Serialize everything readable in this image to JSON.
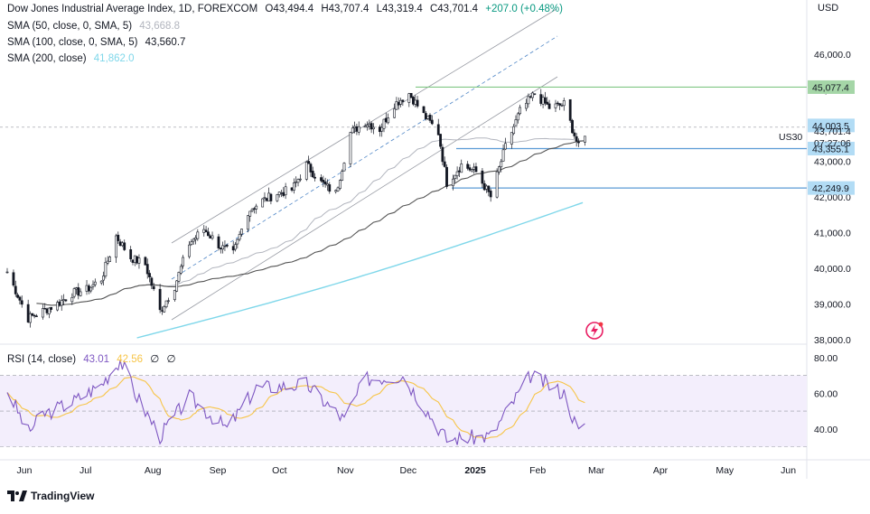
{
  "header": {
    "symbol_title": "Dow Jones Industrial Average Index, 1D, FOREXCOM",
    "ohlc": {
      "o": "O43,494.4",
      "h": "H43,707.4",
      "l": "L43,319.4",
      "c": "C43,701.4",
      "change": "+207.0 (+0.48%)"
    },
    "currency": "USD"
  },
  "indicators": [
    {
      "label": "SMA (50, close, 0, SMA, 5)",
      "value": "43,668.8",
      "color": "#b2b5be"
    },
    {
      "label": "SMA (100, close, 0, SMA, 5)",
      "value": "43,560.7",
      "color": "#555555"
    },
    {
      "label": "SMA (200, close)",
      "value": "41,862.0",
      "color": "#7fd7ea"
    }
  ],
  "rsi": {
    "label": "RSI (14, close)",
    "value": "43.01",
    "ma_value": "42.56",
    "extra1": "∅",
    "extra2": "∅",
    "line_color": "#7e57c2",
    "ma_color": "#f7c548"
  },
  "price_axis": [
    "46,000.0",
    "45,000.0",
    "44,000.0",
    "43,000.0",
    "42,000.0",
    "41,000.0",
    "40,000.0",
    "39,000.0",
    "38,000.0"
  ],
  "rsi_axis": [
    "80.00",
    "60.00",
    "40.00"
  ],
  "time_axis": [
    "Jun",
    "Jul",
    "Aug",
    "Sep",
    "Oct",
    "Nov",
    "Dec",
    "2025",
    "Feb",
    "Mar",
    "Apr",
    "May",
    "Jun"
  ],
  "price_tags": [
    {
      "text": "45,077.4",
      "value": 45077.4,
      "bg": "#a5d6a7"
    },
    {
      "text": "44,003.5",
      "value": 44003.5,
      "bg": "#b2dcf5"
    },
    {
      "text": "43,355.1",
      "value": 43355.1,
      "bg": "#b2dcf5"
    },
    {
      "text": "42,249.9",
      "value": 42249.9,
      "bg": "#b2dcf5"
    }
  ],
  "last_price": {
    "symbol": "US30",
    "price": "43,701.4",
    "countdown": "07:27:06"
  },
  "chart_data": {
    "type": "line",
    "title": "Dow Jones Industrial Average Index, 1D, FOREXCOM",
    "ylabel": "USD",
    "ylim": [
      38000,
      46900
    ],
    "x_months": [
      "Jun",
      "Jul",
      "Aug",
      "Sep",
      "Oct",
      "Nov",
      "Dec",
      "2025",
      "Feb",
      "Mar",
      "Apr",
      "May",
      "Jun"
    ],
    "price_close_approx": [
      {
        "date": "2024-05-24",
        "close": 39900
      },
      {
        "date": "2024-06-03",
        "close": 38600
      },
      {
        "date": "2024-06-10",
        "close": 38800
      },
      {
        "date": "2024-06-17",
        "close": 39000
      },
      {
        "date": "2024-06-24",
        "close": 39300
      },
      {
        "date": "2024-07-01",
        "close": 39400
      },
      {
        "date": "2024-07-08",
        "close": 39700
      },
      {
        "date": "2024-07-15",
        "close": 40900
      },
      {
        "date": "2024-07-22",
        "close": 40300
      },
      {
        "date": "2024-07-29",
        "close": 40100
      },
      {
        "date": "2024-08-05",
        "close": 38800
      },
      {
        "date": "2024-08-12",
        "close": 39500
      },
      {
        "date": "2024-08-19",
        "close": 40700
      },
      {
        "date": "2024-08-26",
        "close": 41100
      },
      {
        "date": "2024-09-03",
        "close": 40600
      },
      {
        "date": "2024-09-09",
        "close": 40400
      },
      {
        "date": "2024-09-16",
        "close": 41600
      },
      {
        "date": "2024-09-23",
        "close": 41900
      },
      {
        "date": "2024-09-30",
        "close": 42100
      },
      {
        "date": "2024-10-07",
        "close": 42200
      },
      {
        "date": "2024-10-14",
        "close": 42900
      },
      {
        "date": "2024-10-21",
        "close": 42400
      },
      {
        "date": "2024-10-28",
        "close": 42100
      },
      {
        "date": "2024-11-04",
        "close": 43800
      },
      {
        "date": "2024-11-11",
        "close": 44100
      },
      {
        "date": "2024-11-18",
        "close": 43900
      },
      {
        "date": "2024-11-25",
        "close": 44600
      },
      {
        "date": "2024-12-02",
        "close": 44900
      },
      {
        "date": "2024-12-09",
        "close": 44300
      },
      {
        "date": "2024-12-16",
        "close": 43800
      },
      {
        "date": "2024-12-20",
        "close": 42400
      },
      {
        "date": "2024-12-27",
        "close": 42900
      },
      {
        "date": "2025-01-03",
        "close": 42700
      },
      {
        "date": "2025-01-10",
        "close": 42000
      },
      {
        "date": "2025-01-17",
        "close": 43400
      },
      {
        "date": "2025-01-24",
        "close": 44400
      },
      {
        "date": "2025-01-31",
        "close": 44900
      },
      {
        "date": "2025-02-07",
        "close": 44500
      },
      {
        "date": "2025-02-14",
        "close": 44600
      },
      {
        "date": "2025-02-21",
        "close": 43400
      },
      {
        "date": "2025-02-24",
        "close": 43701.4
      }
    ],
    "series": [
      {
        "name": "SMA (50, close, 0, SMA, 5)",
        "last": 43668.8
      },
      {
        "name": "SMA (100, close, 0, SMA, 5)",
        "last": 43560.7
      },
      {
        "name": "SMA (200, close)",
        "last": 41862.0
      }
    ],
    "horizontal_levels": [
      45077.4,
      44003.5,
      43355.1,
      42249.9
    ],
    "rsi_ylim": [
      30,
      85
    ],
    "rsi_bands": [
      30,
      50,
      70
    ],
    "rsi_close_approx": [
      {
        "date": "2024-05-24",
        "v": 62
      },
      {
        "date": "2024-06-03",
        "v": 38
      },
      {
        "date": "2024-06-10",
        "v": 48
      },
      {
        "date": "2024-06-24",
        "v": 55
      },
      {
        "date": "2024-07-08",
        "v": 65
      },
      {
        "date": "2024-07-17",
        "v": 79
      },
      {
        "date": "2024-07-25",
        "v": 58
      },
      {
        "date": "2024-08-05",
        "v": 36
      },
      {
        "date": "2024-08-19",
        "v": 58
      },
      {
        "date": "2024-09-06",
        "v": 40
      },
      {
        "date": "2024-09-20",
        "v": 63
      },
      {
        "date": "2024-10-14",
        "v": 65
      },
      {
        "date": "2024-11-01",
        "v": 45
      },
      {
        "date": "2024-11-11",
        "v": 68
      },
      {
        "date": "2024-11-29",
        "v": 70
      },
      {
        "date": "2024-12-20",
        "v": 34
      },
      {
        "date": "2025-01-10",
        "v": 36
      },
      {
        "date": "2025-01-29",
        "v": 70
      },
      {
        "date": "2025-02-14",
        "v": 60
      },
      {
        "date": "2025-02-21",
        "v": 38
      },
      {
        "date": "2025-02-24",
        "v": 43.01
      }
    ]
  }
}
